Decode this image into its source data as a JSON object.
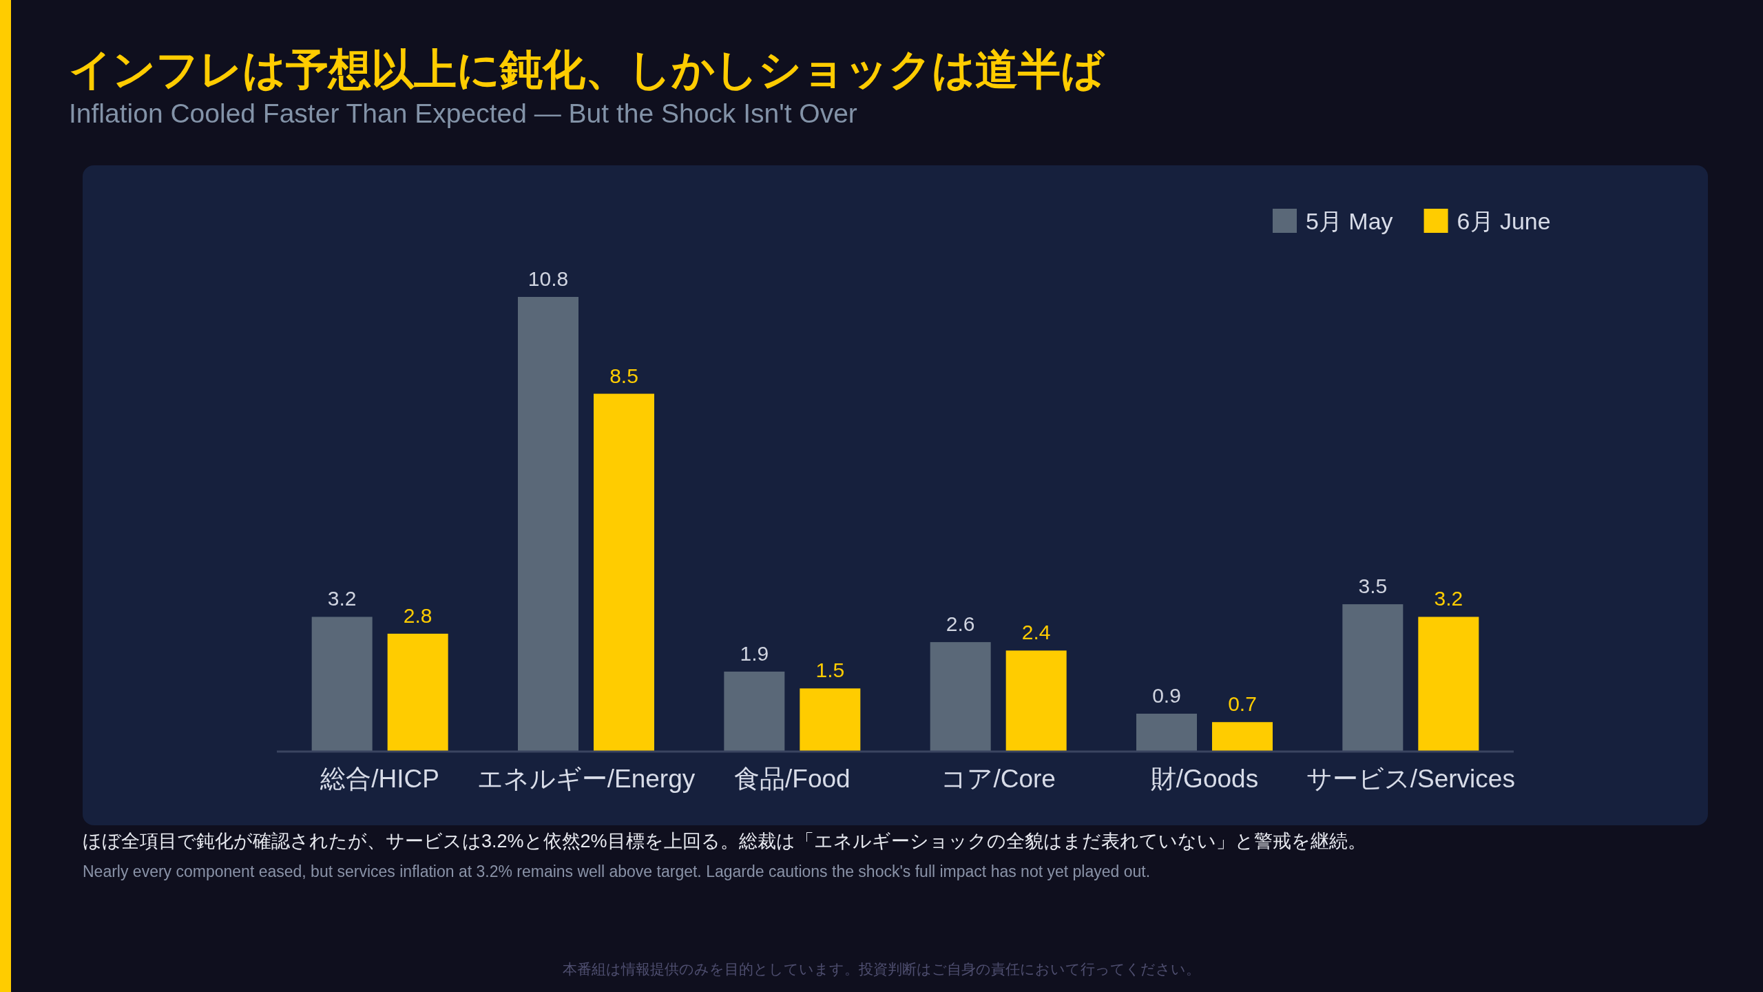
{
  "chart_data": {
    "type": "bar",
    "title": "インフレは予想以上に鈍化、しかしショックは道半ば",
    "subtitle": "Inflation Cooled Faster Than Expected — But the Shock Isn't Over",
    "categories": [
      "総合/HICP",
      "エネルギー/Energy",
      "食品/Food",
      "コア/Core",
      "財/Goods",
      "サービス/Services"
    ],
    "series": [
      {
        "name": "5月 May",
        "color": "#5a6878",
        "values": [
          3.2,
          10.8,
          1.9,
          2.6,
          0.9,
          3.5
        ]
      },
      {
        "name": "6月 June",
        "color": "#ffcc00",
        "values": [
          2.8,
          8.5,
          1.5,
          2.4,
          0.7,
          3.2
        ]
      }
    ],
    "data_labels": true,
    "legend": "top right",
    "annotations": [
      "ほぼ全項目で鈍化が確認されたが、サービスは3.2%と依然2%目標を上回る。総裁は「エネルギーショックの全貌はまだ表れていない」と警戒を継続。",
      "Nearly every component eased, but services inflation at 3.2% remains well above target. Lagarde cautions the shock's full impact has not yet played out.",
      "本番組は情報提供のみを目的としています。投資判断はご自身の責任において行ってください。"
    ]
  }
}
